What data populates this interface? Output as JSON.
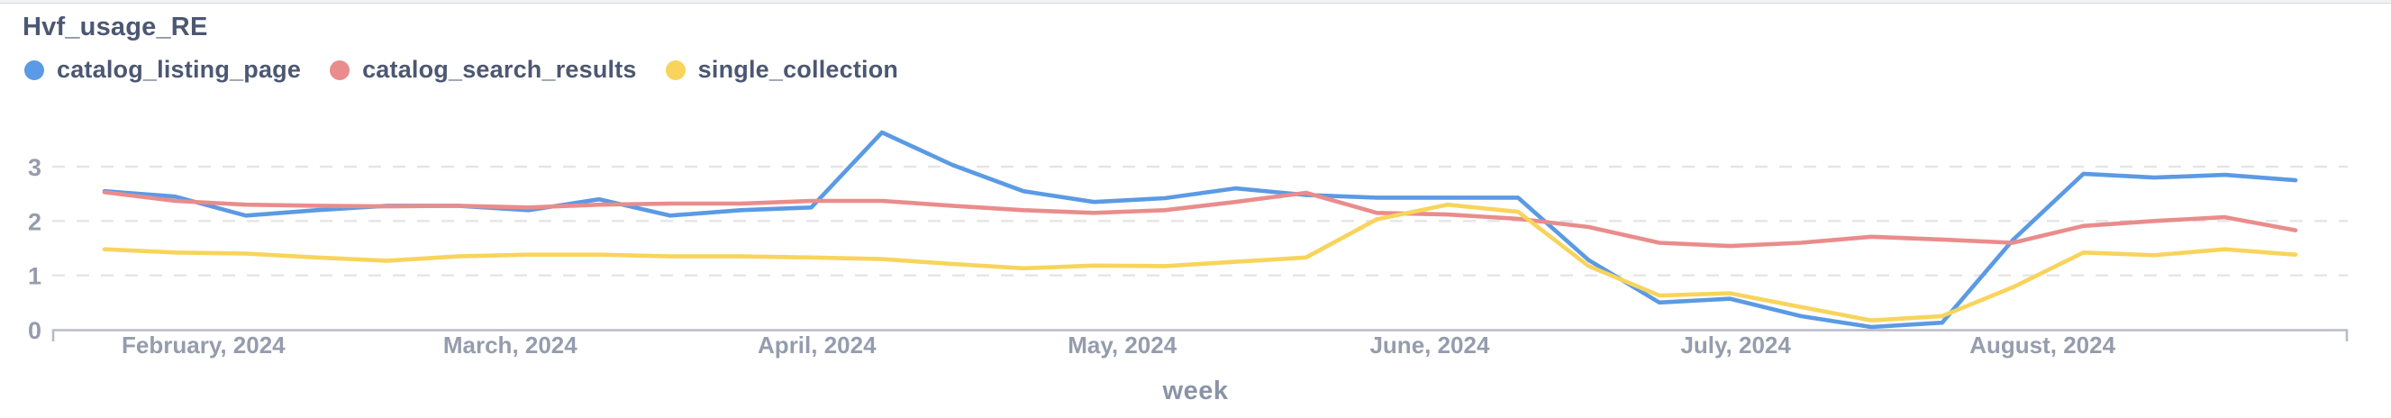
{
  "header": {
    "title": "Hvf_usage_RE"
  },
  "chart_data": {
    "type": "line",
    "title": "Hvf_usage_RE",
    "xlabel": "week",
    "ylabel": "",
    "ylim": [
      0,
      3.8
    ],
    "y_ticks": [
      0,
      1,
      2,
      3
    ],
    "grid": "horizontal-dashed",
    "legend_position": "top-left",
    "x_unit": "week index (weekly points, left to right)",
    "x_week_index": [
      0,
      1,
      2,
      3,
      4,
      5,
      6,
      7,
      8,
      9,
      10,
      11,
      12,
      13,
      14,
      15,
      16,
      17,
      18,
      19,
      20,
      21,
      22,
      23,
      24,
      25,
      26,
      27,
      28,
      29,
      30,
      31
    ],
    "x_ticks": [
      {
        "label": "February, 2024",
        "week_index": 1.4
      },
      {
        "label": "March, 2024",
        "week_index": 5.74
      },
      {
        "label": "April, 2024",
        "week_index": 10.08
      },
      {
        "label": "May, 2024",
        "week_index": 14.4
      },
      {
        "label": "June, 2024",
        "week_index": 18.75
      },
      {
        "label": "July, 2024",
        "week_index": 23.08
      },
      {
        "label": "August, 2024",
        "week_index": 27.42
      }
    ],
    "series": [
      {
        "name": "catalog_listing_page",
        "color": "#5b9ae4",
        "values": [
          2.55,
          2.45,
          2.1,
          2.2,
          2.28,
          2.28,
          2.2,
          2.4,
          2.1,
          2.2,
          2.25,
          3.63,
          3.03,
          2.55,
          2.35,
          2.42,
          2.6,
          2.48,
          2.43,
          2.43,
          2.43,
          1.28,
          0.5,
          0.57,
          0.25,
          0.05,
          0.13,
          1.65,
          2.87,
          2.8,
          2.85,
          2.75
        ]
      },
      {
        "name": "catalog_search_results",
        "color": "#ea8c8c",
        "values": [
          2.53,
          2.37,
          2.3,
          2.28,
          2.27,
          2.28,
          2.25,
          2.3,
          2.32,
          2.32,
          2.37,
          2.37,
          2.28,
          2.2,
          2.15,
          2.2,
          2.35,
          2.52,
          2.15,
          2.12,
          2.04,
          1.89,
          1.6,
          1.54,
          1.6,
          1.71,
          1.66,
          1.6,
          1.91,
          2.0,
          2.07,
          1.83
        ]
      },
      {
        "name": "single_collection",
        "color": "#f8d45c",
        "values": [
          1.48,
          1.42,
          1.4,
          1.33,
          1.27,
          1.35,
          1.38,
          1.38,
          1.35,
          1.35,
          1.33,
          1.3,
          1.21,
          1.13,
          1.18,
          1.17,
          1.25,
          1.33,
          2.03,
          2.3,
          2.17,
          1.17,
          0.63,
          0.67,
          0.42,
          0.17,
          0.25,
          0.78,
          1.42,
          1.37,
          1.48,
          1.38
        ]
      }
    ],
    "colors": {
      "axis_line": "#b9bcc6",
      "gridline": "#e5e5e8",
      "tick_label": "#959cad",
      "axis_title": "#8b93a6",
      "title_text": "#4c5773"
    }
  }
}
